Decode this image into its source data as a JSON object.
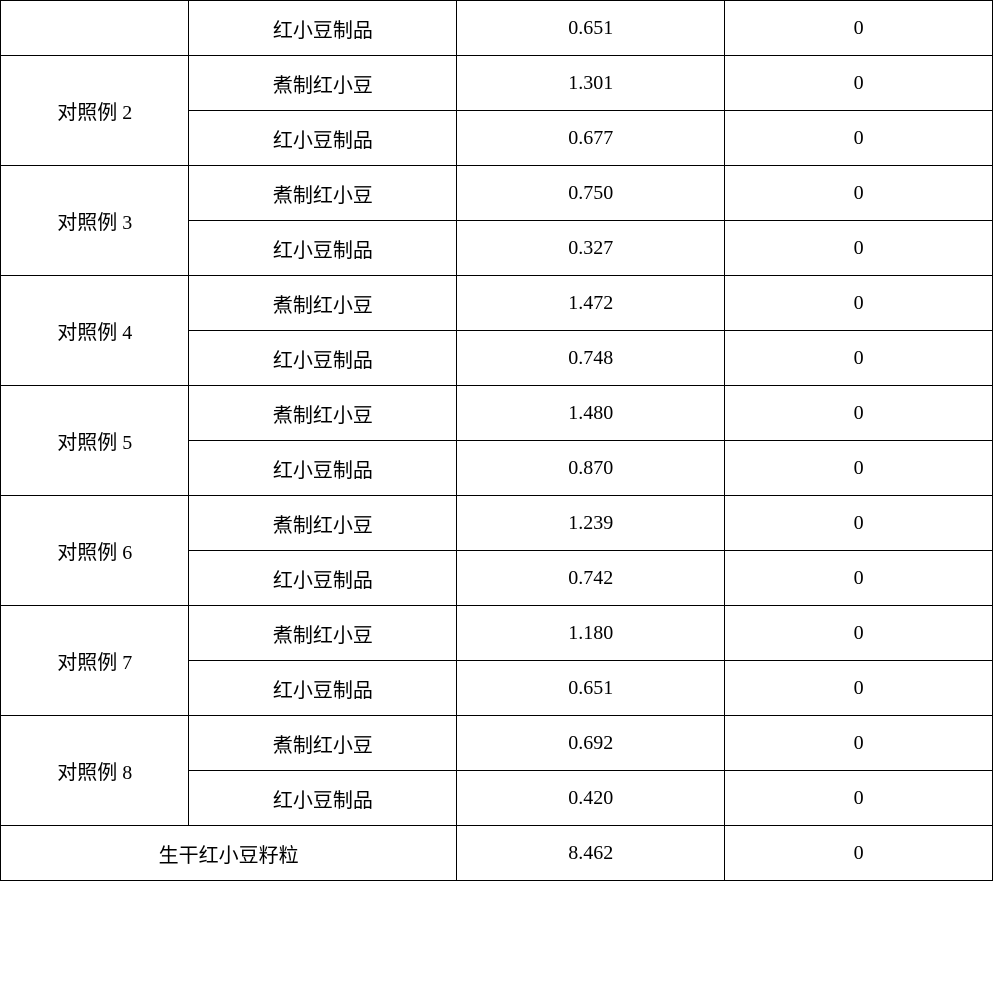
{
  "table": {
    "rows": [
      {
        "col1": "",
        "col2": "红小豆制品",
        "col3": "0.651",
        "col4": "0",
        "rowspan": 1,
        "showCol1": true
      },
      {
        "col1": "对照例 2",
        "col2": "煮制红小豆",
        "col3": "1.301",
        "col4": "0",
        "rowspan": 2,
        "showCol1": true
      },
      {
        "col1": "",
        "col2": "红小豆制品",
        "col3": "0.677",
        "col4": "0",
        "rowspan": 0,
        "showCol1": false
      },
      {
        "col1": "对照例 3",
        "col2": "煮制红小豆",
        "col3": "0.750",
        "col4": "0",
        "rowspan": 2,
        "showCol1": true
      },
      {
        "col1": "",
        "col2": "红小豆制品",
        "col3": "0.327",
        "col4": "0",
        "rowspan": 0,
        "showCol1": false
      },
      {
        "col1": "对照例 4",
        "col2": "煮制红小豆",
        "col3": "1.472",
        "col4": "0",
        "rowspan": 2,
        "showCol1": true
      },
      {
        "col1": "",
        "col2": "红小豆制品",
        "col3": "0.748",
        "col4": "0",
        "rowspan": 0,
        "showCol1": false
      },
      {
        "col1": "对照例 5",
        "col2": "煮制红小豆",
        "col3": "1.480",
        "col4": "0",
        "rowspan": 2,
        "showCol1": true
      },
      {
        "col1": "",
        "col2": "红小豆制品",
        "col3": "0.870",
        "col4": "0",
        "rowspan": 0,
        "showCol1": false
      },
      {
        "col1": "对照例 6",
        "col2": "煮制红小豆",
        "col3": "1.239",
        "col4": "0",
        "rowspan": 2,
        "showCol1": true
      },
      {
        "col1": "",
        "col2": "红小豆制品",
        "col3": "0.742",
        "col4": "0",
        "rowspan": 0,
        "showCol1": false
      },
      {
        "col1": "对照例 7",
        "col2": "煮制红小豆",
        "col3": "1.180",
        "col4": "0",
        "rowspan": 2,
        "showCol1": true
      },
      {
        "col1": "",
        "col2": "红小豆制品",
        "col3": "0.651",
        "col4": "0",
        "rowspan": 0,
        "showCol1": false
      },
      {
        "col1": "对照例 8",
        "col2": "煮制红小豆",
        "col3": "0.692",
        "col4": "0",
        "rowspan": 2,
        "showCol1": true
      },
      {
        "col1": "",
        "col2": "红小豆制品",
        "col3": "0.420",
        "col4": "0",
        "rowspan": 0,
        "showCol1": false
      }
    ],
    "lastRow": {
      "merged": "生干红小豆籽粒",
      "col3": "8.462",
      "col4": "0"
    },
    "colWidths": {
      "col1": "19%",
      "col2": "27%",
      "col3": "27%",
      "col4": "27%"
    },
    "styling": {
      "borderColor": "#000000",
      "borderWidth": "1.5px",
      "fontSize": "20px",
      "fontFamily": "SimSun",
      "rowHeight": "55px",
      "backgroundColor": "#ffffff",
      "textAlign": "center"
    }
  }
}
